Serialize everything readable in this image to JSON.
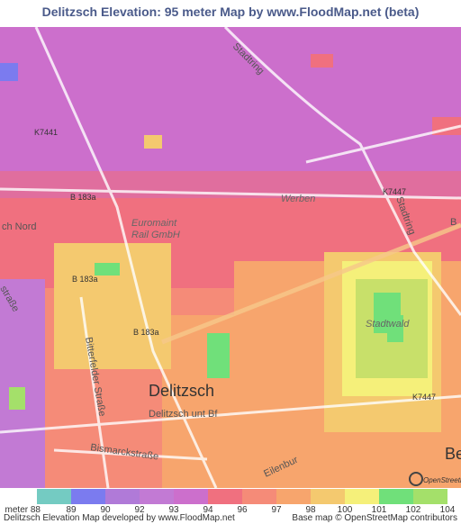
{
  "header": {
    "title": "Delitzsch Elevation: 95 meter Map by www.FloodMap.net (beta)"
  },
  "map": {
    "labels": {
      "town": "Delitzsch",
      "district": "Werben",
      "company_1": "Euromaint",
      "company_2": "Rail GmbH",
      "forest": "Stadtwald",
      "road_k7441": "K7441",
      "road_k7447_a": "K7447",
      "road_k7447_b": "K7447",
      "road_b183a_a": "B 183a",
      "road_b183a_b": "B 183a",
      "road_b183a_c": "B 183a",
      "station": "Delitzsch unt Bf",
      "street_bismarck": "Bismarckstraße",
      "street_bitterfelder": "Bitterfelder Straße",
      "ring_a": "Stadtring",
      "ring_b": "Stadtring",
      "nord": "ch Nord",
      "strasse": "straße",
      "eilenburger": "Eilenbur",
      "edge_be": "Be",
      "edge_b": "B",
      "osm_logo": "OpenStreetMap"
    }
  },
  "legend": {
    "items": [
      {
        "label": "meter 88",
        "color": "#74cbc2"
      },
      {
        "label": "89",
        "color": "#7b7bef"
      },
      {
        "label": "90",
        "color": "#b07ad8"
      },
      {
        "label": "92",
        "color": "#c27ad4"
      },
      {
        "label": "93",
        "color": "#cc6fcc"
      },
      {
        "label": "94",
        "color": "#f0707f"
      },
      {
        "label": "96",
        "color": "#f58b78"
      },
      {
        "label": "97",
        "color": "#f7a56d"
      },
      {
        "label": "98",
        "color": "#f4c96f"
      },
      {
        "label": "100",
        "color": "#f5f07a"
      },
      {
        "label": "101",
        "color": "#70e07a"
      },
      {
        "label": "102",
        "color": "#a4e06a"
      },
      {
        "label": "104",
        "color": null
      }
    ]
  },
  "footer": {
    "left": "Delitzsch Elevation Map developed by www.FloodMap.net",
    "right": "Base map © OpenStreetMap contributors"
  }
}
